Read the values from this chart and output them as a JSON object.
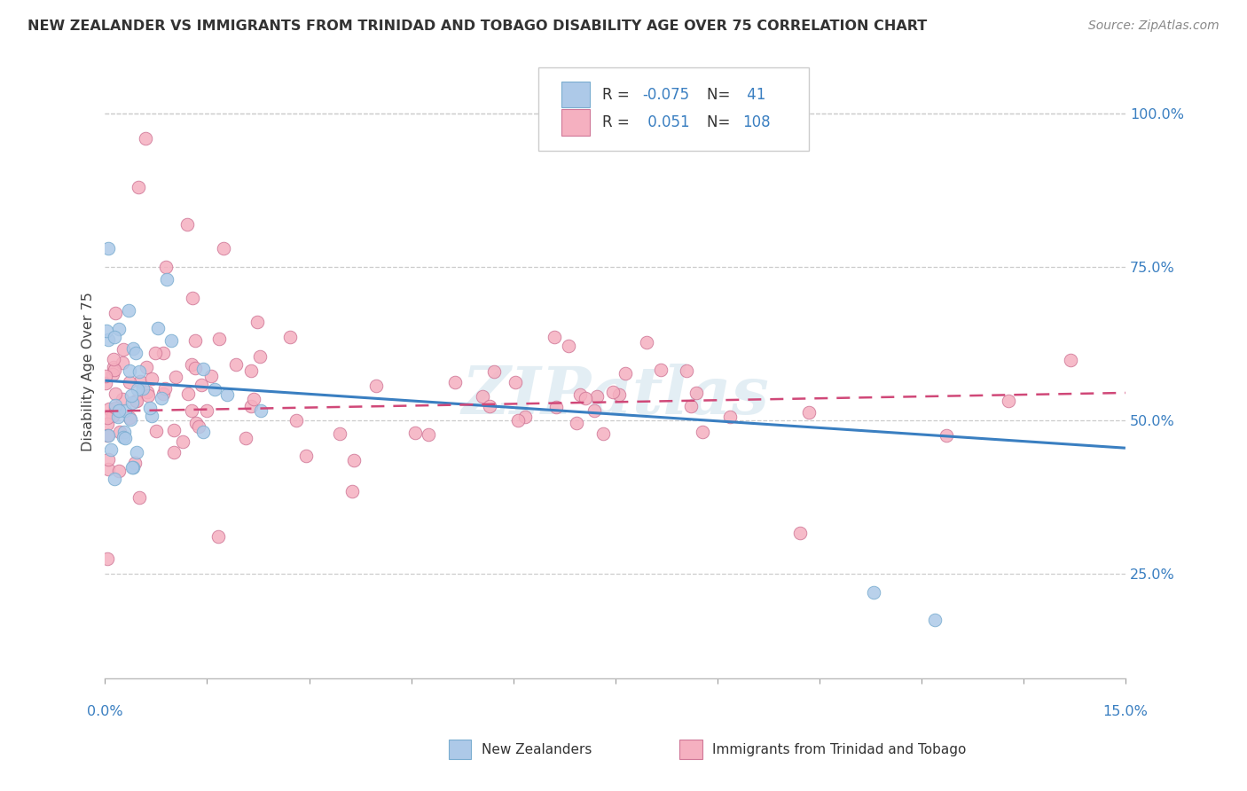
{
  "title": "NEW ZEALANDER VS IMMIGRANTS FROM TRINIDAD AND TOBAGO DISABILITY AGE OVER 75 CORRELATION CHART",
  "source": "Source: ZipAtlas.com",
  "ylabel": "Disability Age Over 75",
  "y_ticks": [
    0.25,
    0.5,
    0.75,
    1.0
  ],
  "y_tick_labels": [
    "25.0%",
    "50.0%",
    "75.0%",
    "100.0%"
  ],
  "xmin": 0.0,
  "xmax": 0.15,
  "ymin": 0.08,
  "ymax": 1.08,
  "watermark": "ZIPatlas",
  "blue_color": "#adc9e8",
  "pink_color": "#f5b0c0",
  "blue_edge_color": "#7aadd0",
  "pink_edge_color": "#d07898",
  "blue_line_color": "#3a7fc1",
  "pink_line_color": "#d04878",
  "blue_r": -0.075,
  "pink_r": 0.051,
  "blue_n": 41,
  "pink_n": 108,
  "blue_line_y0": 0.565,
  "blue_line_y1": 0.455,
  "pink_line_y0": 0.515,
  "pink_line_y1": 0.545
}
